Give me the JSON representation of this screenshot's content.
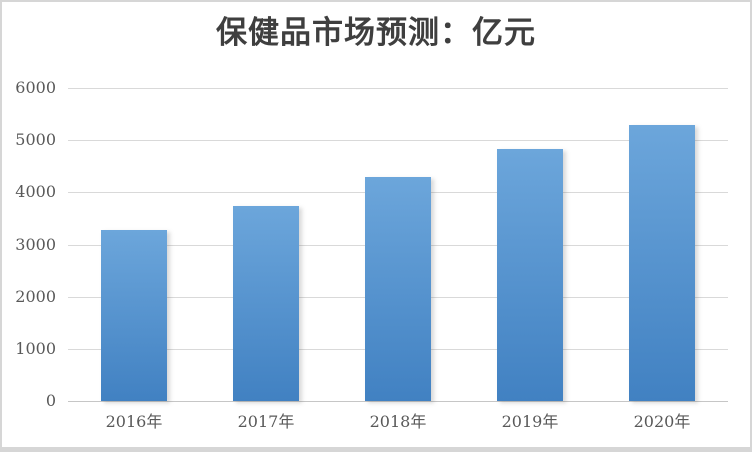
{
  "chart_data": {
    "type": "bar",
    "title": "保健品市场预测：亿元",
    "categories": [
      "2016年",
      "2017年",
      "2018年",
      "2019年",
      "2020年"
    ],
    "values": [
      3270,
      3730,
      4300,
      4840,
      5300
    ],
    "xlabel": "",
    "ylabel": "",
    "ylim": [
      0,
      6000
    ],
    "yticks": [
      0,
      1000,
      2000,
      3000,
      4000,
      5000,
      6000
    ],
    "grid": true,
    "legend_position": "none",
    "colors": {
      "bar_gradient_top": "#6ca6db",
      "bar_gradient_bottom": "#4181c2",
      "gridline": "#d9d9d9",
      "axis_label": "#595959",
      "title": "#3f3f3f",
      "frame_border": "#d6d6d6",
      "background": "#ffffff"
    }
  }
}
